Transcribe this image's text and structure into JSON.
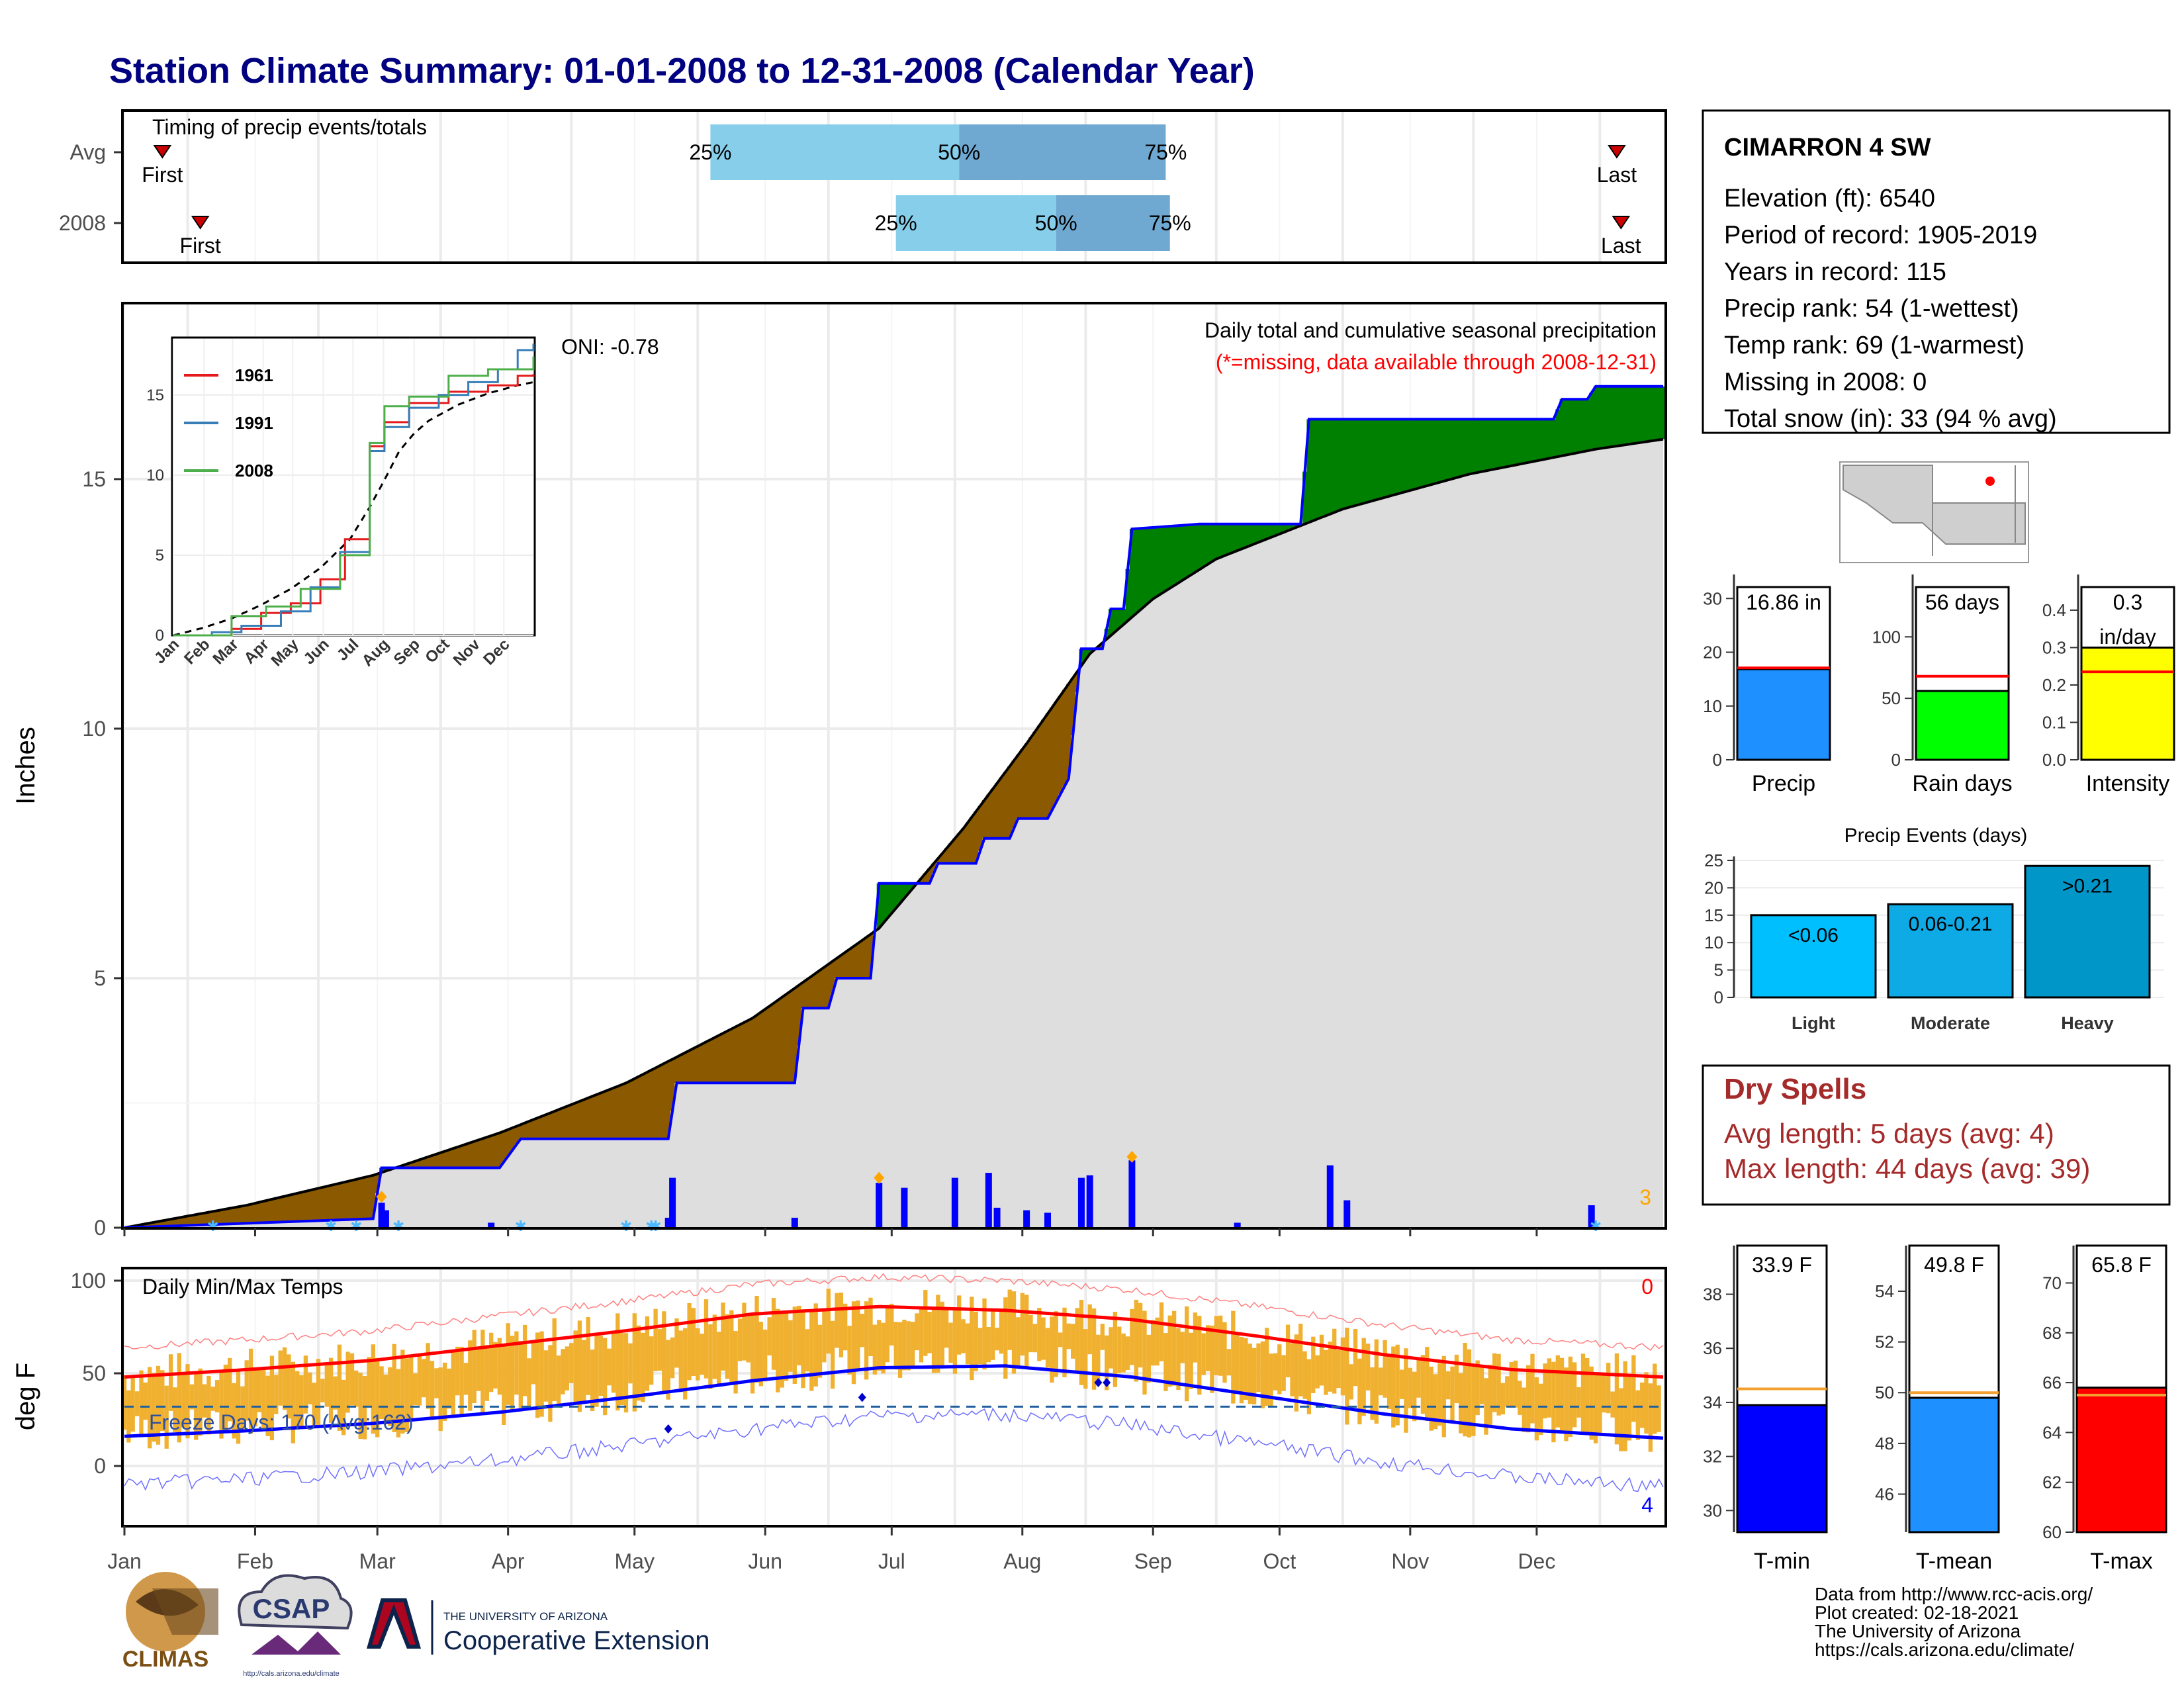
{
  "title": "Station Climate Summary: 01-01-2008 to 12-31-2008 (Calendar Year)",
  "colors": {
    "title": "#000080",
    "brown": "#8B5A00",
    "green": "#008000",
    "cumulative_gray": "#dedede",
    "precip_bar": "#0000ff",
    "quartile_light": "#87ceeb",
    "quartile_dark": "#6fa8d0",
    "dry_spells": "#a52a2a",
    "temp_bar": "#f0b030",
    "max_line": "#ff0000",
    "min_line": "#0000ff"
  },
  "timing_panel": {
    "title": "Timing of precip events/totals",
    "rows": [
      {
        "label": "Avg",
        "first_label": "First",
        "last_label": "Last",
        "first_day": 10,
        "last_day": 355,
        "q25_label": "25%",
        "q50_label": "50%",
        "q75_label": "75%",
        "q25_day": 140,
        "q50_day": 199,
        "q75_day": 248
      },
      {
        "label": "2008",
        "first_label": "First",
        "last_label": "Last",
        "first_day": 19,
        "last_day": 356,
        "q25_label": "25%",
        "q50_label": "50%",
        "q75_label": "75%",
        "q25_day": 184,
        "q50_day": 222,
        "q75_day": 249
      }
    ]
  },
  "precip_panel": {
    "ylabel": "Inches",
    "note_title": "Daily total and cumulative seasonal precipitation",
    "note_missing": "(*=missing, data available through 2008-12-31)",
    "oni": "ONI: -0.78",
    "corner_count": "3",
    "ylim": [
      0,
      18.5
    ],
    "yticks": [
      0,
      5,
      10,
      15
    ],
    "ytick_labels": [
      "0",
      "5",
      "10",
      "15"
    ]
  },
  "months": [
    "Jan",
    "Feb",
    "Mar",
    "Apr",
    "May",
    "Jun",
    "Jul",
    "Aug",
    "Sep",
    "Oct",
    "Nov",
    "Dec"
  ],
  "inset": {
    "yticks": [
      "0",
      "5",
      "10",
      "15"
    ],
    "legend": [
      "1961",
      "1991",
      "2008"
    ],
    "legend_colors": [
      "#e41a1c",
      "#377eb8",
      "#4daf4a"
    ]
  },
  "temp_panel": {
    "ylabel": "deg F",
    "title": "Daily Min/Max Temps",
    "freeze": "Freeze Days: 170 (Avg:162)",
    "max_count": "0",
    "min_count": "4",
    "yticks": [
      "0",
      "50",
      "100"
    ],
    "freeze_line": 32
  },
  "station": {
    "name": "CIMARRON 4 SW",
    "lines": [
      "Elevation (ft): 6540",
      "Period of record: 1905-2019",
      "Years in record: 115",
      "Precip rank: 54 (1-wettest)",
      "Temp rank: 69 (1-warmest)",
      "Missing in 2008: 0",
      "Total snow (in): 33 (94 % avg)"
    ]
  },
  "precip_bars": [
    {
      "label": "16.86 in",
      "xlabel": "Precip",
      "value": 16.86,
      "avg": 17.1,
      "ymax": 32,
      "ticks": [
        "0",
        "10",
        "20",
        "30"
      ],
      "tick_vals": [
        0,
        10,
        20,
        30
      ],
      "color": "#1e90ff"
    },
    {
      "label": "56 days",
      "xlabel": "Rain days",
      "value": 56,
      "avg": 68,
      "ymax": 140,
      "ticks": [
        "0",
        "50",
        "100"
      ],
      "tick_vals": [
        0,
        50,
        100
      ],
      "color": "#00ff00"
    },
    {
      "label": "0.3",
      "label2": "in/day",
      "xlabel": "Intensity",
      "value": 0.3,
      "avg": 0.235,
      "ymax": 0.46,
      "ticks": [
        "0.0",
        "0.1",
        "0.2",
        "0.3",
        "0.4"
      ],
      "tick_vals": [
        0,
        0.1,
        0.2,
        0.3,
        0.4
      ],
      "color": "#ffff00"
    }
  ],
  "events": {
    "title": "Precip Events (days)",
    "categories": [
      "Light",
      "Moderate",
      "Heavy"
    ],
    "labels": [
      "<0.06",
      "0.06-0.21",
      ">0.21"
    ],
    "values": [
      15,
      17,
      24
    ],
    "colors": [
      "#00bfff",
      "#0eaae6",
      "#0096c8"
    ],
    "ticks": [
      "0",
      "5",
      "10",
      "15",
      "20",
      "25"
    ]
  },
  "dry_spells": {
    "title": "Dry Spells",
    "avg": "Avg length: 5 days (avg: 4)",
    "max": "Max length: 44 days (avg: 39)"
  },
  "temp_bars": [
    {
      "label": "33.9 F",
      "xlabel": "T-min",
      "value": 33.9,
      "avg": 34.5,
      "ymin": 29.2,
      "ymax": 39.8,
      "ticks": [
        "30",
        "32",
        "34",
        "36",
        "38"
      ],
      "tick_vals": [
        30,
        32,
        34,
        36,
        38
      ],
      "color": "#0000ff"
    },
    {
      "label": "49.8 F",
      "xlabel": "T-mean",
      "value": 49.8,
      "avg": 50.0,
      "ymin": 44.5,
      "ymax": 55.8,
      "ticks": [
        "46",
        "48",
        "50",
        "52",
        "54"
      ],
      "tick_vals": [
        46,
        48,
        50,
        52,
        54
      ],
      "color": "#1e90ff"
    },
    {
      "label": "65.8 F",
      "xlabel": "T-max",
      "value": 65.8,
      "avg": 65.5,
      "ymin": 60,
      "ymax": 71.5,
      "ticks": [
        "60",
        "62",
        "64",
        "66",
        "68",
        "70"
      ],
      "tick_vals": [
        60,
        62,
        64,
        66,
        68,
        70
      ],
      "color": "#ff0000"
    }
  ],
  "footer": {
    "lines": [
      "Data from http://www.rcc-acis.org/",
      "Plot created: 02-18-2021",
      "The University of Arizona",
      "https://cals.arizona.edu/climate/"
    ],
    "climas": "CLIMAS",
    "csap": "CSAP",
    "csap_url": "http://cals.arizona.edu/climate",
    "ua_top": "THE UNIVERSITY OF ARIZONA",
    "ua_name": "Cooperative Extension"
  },
  "chart_data": {
    "type": "area",
    "title": "Daily total and cumulative seasonal precipitation",
    "ylabel": "Inches",
    "ylim": [
      0,
      18.5
    ],
    "x_axis": "day of year 2008",
    "cumulative_2008": [
      [
        1,
        0
      ],
      [
        60,
        0.18
      ],
      [
        62,
        1.2
      ],
      [
        90,
        1.2
      ],
      [
        95,
        1.78
      ],
      [
        130,
        1.78
      ],
      [
        132,
        2.9
      ],
      [
        160,
        2.9
      ],
      [
        162,
        4.4
      ],
      [
        168,
        4.4
      ],
      [
        170,
        5.0
      ],
      [
        178,
        5.0
      ],
      [
        180,
        6.9
      ],
      [
        192,
        6.9
      ],
      [
        194,
        7.3
      ],
      [
        203,
        7.3
      ],
      [
        205,
        7.8
      ],
      [
        211,
        7.8
      ],
      [
        213,
        8.2
      ],
      [
        220,
        8.2
      ],
      [
        225,
        9.0
      ],
      [
        228,
        11.6
      ],
      [
        233,
        11.6
      ],
      [
        235,
        12.4
      ],
      [
        238,
        12.4
      ],
      [
        240,
        14.0
      ],
      [
        256,
        14.1
      ],
      [
        280,
        14.1
      ],
      [
        282,
        16.2
      ],
      [
        340,
        16.2
      ],
      [
        342,
        16.6
      ],
      [
        348,
        16.6
      ],
      [
        350,
        16.86
      ],
      [
        366,
        16.86
      ]
    ],
    "cumulative_avg": [
      [
        1,
        0
      ],
      [
        30,
        0.45
      ],
      [
        60,
        1.05
      ],
      [
        90,
        1.9
      ],
      [
        120,
        2.9
      ],
      [
        150,
        4.2
      ],
      [
        180,
        6.0
      ],
      [
        200,
        8.0
      ],
      [
        215,
        9.7
      ],
      [
        230,
        11.5
      ],
      [
        245,
        12.6
      ],
      [
        260,
        13.4
      ],
      [
        290,
        14.4
      ],
      [
        320,
        15.1
      ],
      [
        350,
        15.6
      ],
      [
        366,
        15.8
      ]
    ],
    "daily_precip": [
      [
        62,
        0.5
      ],
      [
        63,
        0.35
      ],
      [
        88,
        0.1
      ],
      [
        130,
        0.2
      ],
      [
        131,
        1.0
      ],
      [
        160,
        0.2
      ],
      [
        180,
        0.9
      ],
      [
        186,
        0.8
      ],
      [
        198,
        1.0
      ],
      [
        206,
        1.1
      ],
      [
        208,
        0.4
      ],
      [
        215,
        0.35
      ],
      [
        220,
        0.3
      ],
      [
        228,
        1.0
      ],
      [
        230,
        1.05
      ],
      [
        240,
        1.35
      ],
      [
        265,
        0.1
      ],
      [
        287,
        1.25
      ],
      [
        291,
        0.55
      ],
      [
        349,
        0.45
      ]
    ],
    "temp_avg_max": [
      [
        1,
        48
      ],
      [
        30,
        52
      ],
      [
        60,
        57
      ],
      [
        90,
        65
      ],
      [
        120,
        73
      ],
      [
        150,
        82
      ],
      [
        180,
        86
      ],
      [
        210,
        84
      ],
      [
        240,
        79
      ],
      [
        270,
        70
      ],
      [
        300,
        60
      ],
      [
        330,
        52
      ],
      [
        366,
        48
      ]
    ],
    "temp_avg_min": [
      [
        1,
        16
      ],
      [
        30,
        19
      ],
      [
        60,
        23
      ],
      [
        90,
        29
      ],
      [
        120,
        37
      ],
      [
        150,
        46
      ],
      [
        180,
        53
      ],
      [
        210,
        54
      ],
      [
        240,
        48
      ],
      [
        270,
        38
      ],
      [
        300,
        28
      ],
      [
        330,
        20
      ],
      [
        366,
        15
      ]
    ]
  }
}
